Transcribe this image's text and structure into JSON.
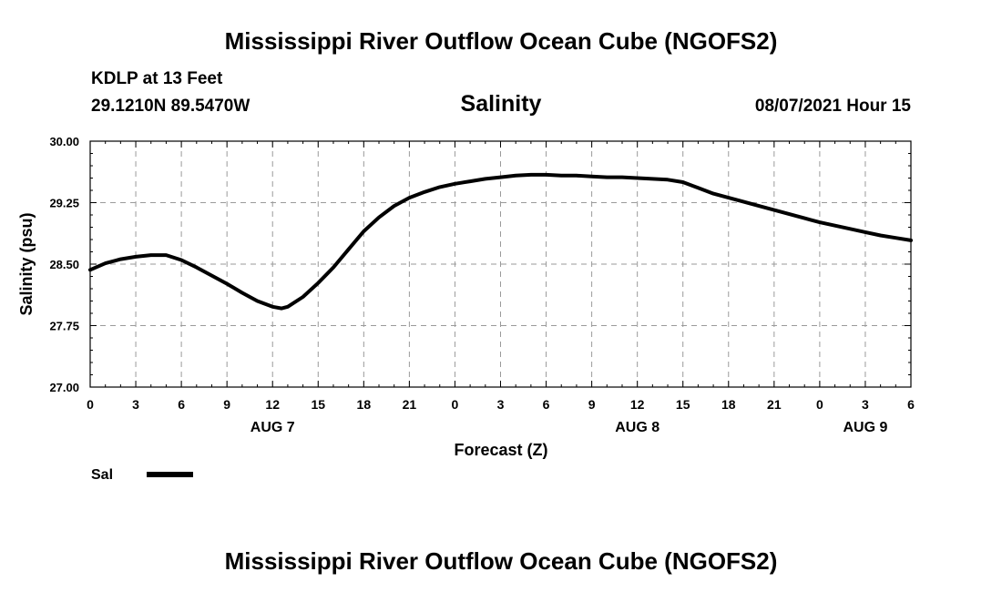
{
  "header": {
    "title": "Mississippi River Outflow Ocean Cube (NGOFS2)",
    "station": "KDLP at 13 Feet",
    "coordinates": "29.1210N  89.5470W",
    "variable": "Salinity",
    "datetime": "08/07/2021 Hour 15"
  },
  "footer": {
    "title": "Mississippi River Outflow Ocean Cube (NGOFS2)"
  },
  "chart_data": {
    "type": "line",
    "title": "Salinity",
    "xlabel": "Forecast (Z)",
    "ylabel": "Salinity (psu)",
    "xlim": [
      0,
      54
    ],
    "ylim": [
      27.0,
      30.0
    ],
    "yticks": [
      27.0,
      27.75,
      28.5,
      29.25,
      30.0
    ],
    "ytick_labels": [
      "27.00",
      "27.75",
      "28.50",
      "29.25",
      "30.00"
    ],
    "xticks": [
      0,
      3,
      6,
      9,
      12,
      15,
      18,
      21,
      24,
      27,
      30,
      33,
      36,
      39,
      42,
      45,
      48,
      51,
      54
    ],
    "xtick_labels": [
      "0",
      "3",
      "6",
      "9",
      "12",
      "15",
      "18",
      "21",
      "0",
      "3",
      "6",
      "9",
      "12",
      "15",
      "18",
      "21",
      "0",
      "3",
      "6"
    ],
    "day_labels": [
      {
        "label": "AUG 7",
        "hour": 12
      },
      {
        "label": "AUG 8",
        "hour": 36
      },
      {
        "label": "AUG 9",
        "hour": 51
      }
    ],
    "grid": true,
    "legend": {
      "label": "Sal",
      "position": "bottom-left"
    },
    "series": [
      {
        "name": "Sal",
        "x": [
          0,
          1,
          2,
          3,
          4,
          5,
          6,
          7,
          8,
          9,
          10,
          11,
          12,
          12.6,
          13,
          14,
          15,
          16,
          17,
          18,
          19,
          20,
          21,
          22,
          23,
          24,
          25,
          26,
          27,
          28,
          29,
          30,
          31,
          32,
          33,
          34,
          35,
          36,
          37,
          38,
          39,
          40,
          41,
          42,
          43,
          44,
          45,
          46,
          47,
          48,
          49,
          50,
          51,
          52,
          53,
          54
        ],
        "values": [
          28.43,
          28.51,
          28.56,
          28.59,
          28.61,
          28.61,
          28.55,
          28.46,
          28.36,
          28.26,
          28.15,
          28.05,
          27.98,
          27.96,
          27.98,
          28.1,
          28.27,
          28.46,
          28.68,
          28.9,
          29.07,
          29.21,
          29.31,
          29.38,
          29.44,
          29.48,
          29.51,
          29.54,
          29.56,
          29.58,
          29.59,
          29.59,
          29.58,
          29.58,
          29.57,
          29.56,
          29.56,
          29.55,
          29.54,
          29.53,
          29.5,
          29.43,
          29.36,
          29.31,
          29.26,
          29.21,
          29.16,
          29.11,
          29.06,
          29.01,
          28.97,
          28.93,
          28.89,
          28.85,
          28.82,
          28.79
        ]
      }
    ]
  }
}
